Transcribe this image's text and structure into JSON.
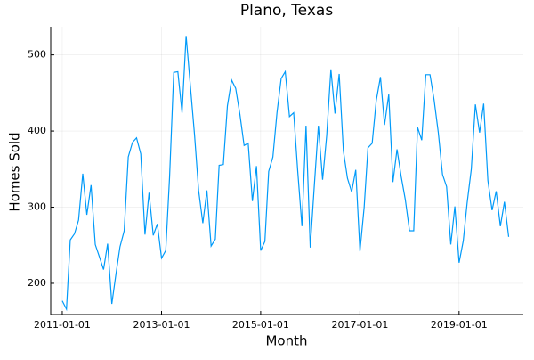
{
  "chart_data": {
    "type": "line",
    "title": "Plano, Texas",
    "x_label": "Month",
    "y_label": "Homes Sold",
    "x": [
      "2011-01-01",
      "2011-02-01",
      "2011-03-01",
      "2011-04-01",
      "2011-05-01",
      "2011-06-01",
      "2011-07-01",
      "2011-08-01",
      "2011-09-01",
      "2011-10-01",
      "2011-11-01",
      "2011-12-01",
      "2012-01-01",
      "2012-02-01",
      "2012-03-01",
      "2012-04-01",
      "2012-05-01",
      "2012-06-01",
      "2012-07-01",
      "2012-08-01",
      "2012-09-01",
      "2012-10-01",
      "2012-11-01",
      "2012-12-01",
      "2013-01-01",
      "2013-02-01",
      "2013-03-01",
      "2013-04-01",
      "2013-05-01",
      "2013-06-01",
      "2013-07-01",
      "2013-08-01",
      "2013-09-01",
      "2013-10-01",
      "2013-11-01",
      "2013-12-01",
      "2014-01-01",
      "2014-02-01",
      "2014-03-01",
      "2014-04-01",
      "2014-05-01",
      "2014-06-01",
      "2014-07-01",
      "2014-08-01",
      "2014-09-01",
      "2014-10-01",
      "2014-11-01",
      "2014-12-01",
      "2015-01-01",
      "2015-02-01",
      "2015-03-01",
      "2015-04-01",
      "2015-05-01",
      "2015-06-01",
      "2015-07-01",
      "2015-08-01",
      "2015-09-01",
      "2015-10-01",
      "2015-11-01",
      "2015-12-01",
      "2016-01-01",
      "2016-02-01",
      "2016-03-01",
      "2016-04-01",
      "2016-05-01",
      "2016-06-01",
      "2016-07-01",
      "2016-08-01",
      "2016-09-01",
      "2016-10-01",
      "2016-11-01",
      "2016-12-01",
      "2017-01-01",
      "2017-02-01",
      "2017-03-01",
      "2017-04-01",
      "2017-05-01",
      "2017-06-01",
      "2017-07-01",
      "2017-08-01",
      "2017-09-01",
      "2017-10-01",
      "2017-11-01",
      "2017-12-01",
      "2018-01-01",
      "2018-02-01",
      "2018-03-01",
      "2018-04-01",
      "2018-05-01",
      "2018-06-01",
      "2018-07-01",
      "2018-08-01",
      "2018-09-01",
      "2018-10-01",
      "2018-11-01",
      "2018-12-01",
      "2019-01-01",
      "2019-02-01",
      "2019-03-01",
      "2019-04-01",
      "2019-05-01",
      "2019-06-01",
      "2019-07-01",
      "2019-08-01",
      "2019-09-01",
      "2019-10-01",
      "2019-11-01",
      "2019-12-01",
      "2020-01-01"
    ],
    "series": [
      {
        "name": "Homes Sold",
        "color": "#009af9",
        "values": [
          177,
          166,
          257,
          265,
          283,
          344,
          290,
          329,
          251,
          235,
          218,
          252,
          173,
          213,
          248,
          269,
          366,
          385,
          391,
          370,
          264,
          319,
          263,
          278,
          233,
          243,
          339,
          477,
          478,
          424,
          525,
          460,
          395,
          322,
          279,
          322,
          249,
          258,
          355,
          356,
          433,
          467,
          456,
          422,
          381,
          384,
          308,
          354,
          243,
          255,
          347,
          366,
          424,
          469,
          478,
          419,
          424,
          347,
          275,
          407,
          247,
          331,
          407,
          336,
          394,
          481,
          423,
          475,
          374,
          338,
          320,
          349,
          242,
          300,
          378,
          384,
          440,
          471,
          408,
          448,
          333,
          376,
          340,
          310,
          269,
          269,
          405,
          388,
          474,
          474,
          441,
          398,
          343,
          327,
          251,
          301,
          227,
          256,
          305,
          350,
          435,
          398,
          436,
          335,
          296,
          321,
          275,
          307,
          261
        ]
      }
    ],
    "xlim": [
      "2010-10-08",
      "2020-04-18"
    ],
    "xticks": [
      "2011-01-01",
      "2013-01-01",
      "2015-01-01",
      "2017-01-01",
      "2019-01-01"
    ],
    "ylim": [
      159,
      537
    ],
    "yticks": [
      200,
      300,
      400,
      500
    ],
    "grid": true
  }
}
